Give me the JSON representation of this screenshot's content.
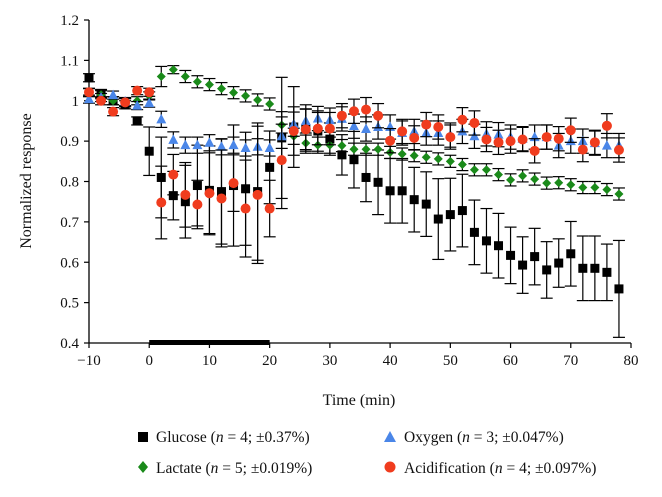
{
  "chart_data": {
    "type": "scatter",
    "xlabel": "Time (min)",
    "ylabel": "Normalized response",
    "xlim": [
      -10,
      80
    ],
    "ylim": [
      0.4,
      1.2
    ],
    "xticks": [
      -10,
      0,
      10,
      20,
      30,
      40,
      50,
      60,
      70,
      80
    ],
    "xtick_labels": [
      "−10",
      "0",
      "10",
      "20",
      "30",
      "40",
      "50",
      "60",
      "70",
      "80"
    ],
    "yticks": [
      0.4,
      0.5,
      0.6,
      0.7,
      0.8,
      0.9,
      1.0,
      1.1,
      1.2
    ],
    "ytick_labels": [
      "0.4",
      "0.5",
      "0.6",
      "0.7",
      "0.8",
      "0.9",
      "1",
      "1.1",
      "1.2"
    ],
    "grid": false,
    "legend_position": "bottom",
    "stimulus_bar": [
      0,
      20
    ],
    "x": [
      -10,
      -8,
      -6,
      -4,
      -2,
      0,
      2,
      4,
      6,
      8,
      10,
      12,
      14,
      16,
      18,
      20,
      22,
      24,
      26,
      28,
      30,
      32,
      34,
      36,
      38,
      40,
      42,
      44,
      46,
      48,
      50,
      52,
      54,
      56,
      58,
      60,
      62,
      64,
      66,
      68,
      70,
      72,
      74,
      76,
      78
    ],
    "series": [
      {
        "name": "Glucose",
        "n": "4",
        "precision": "±0.37%",
        "marker": "square",
        "color": "#000000",
        "values": [
          1.057,
          1.018,
          1.0,
          0.99,
          0.95,
          0.875,
          0.81,
          0.765,
          0.75,
          0.79,
          0.778,
          0.775,
          0.79,
          0.782,
          0.775,
          0.835,
          0.908,
          0.935,
          0.93,
          0.925,
          0.905,
          0.866,
          0.854,
          0.81,
          0.798,
          0.777,
          0.777,
          0.755,
          0.744,
          0.707,
          0.718,
          0.728,
          0.674,
          0.653,
          0.641,
          0.617,
          0.593,
          0.614,
          0.581,
          0.598,
          0.621,
          0.585,
          0.585,
          0.575,
          0.534
        ],
        "errors": [
          0.01,
          0.01,
          0.01,
          0.01,
          0.01,
          0.06,
          0.1,
          0.06,
          0.09,
          0.1,
          0.11,
          0.13,
          0.15,
          0.14,
          0.17,
          0.09,
          0.15,
          0.1,
          0.06,
          0.05,
          0.04,
          0.05,
          0.07,
          0.06,
          0.08,
          0.08,
          0.08,
          0.08,
          0.08,
          0.1,
          0.09,
          0.09,
          0.08,
          0.08,
          0.08,
          0.07,
          0.07,
          0.07,
          0.07,
          0.06,
          0.08,
          0.08,
          0.08,
          0.07,
          0.12
        ]
      },
      {
        "name": "Lactate",
        "n": "5",
        "precision": "±0.019%",
        "marker": "diamond",
        "color": "#1a8a1a",
        "values": [
          1.02,
          1.015,
          1.0,
          0.995,
          1.0,
          1.012,
          1.06,
          1.077,
          1.06,
          1.047,
          1.04,
          1.03,
          1.02,
          1.012,
          1.002,
          0.992,
          0.94,
          0.912,
          0.895,
          0.89,
          0.89,
          0.889,
          0.88,
          0.88,
          0.88,
          0.872,
          0.868,
          0.864,
          0.86,
          0.856,
          0.85,
          0.842,
          0.829,
          0.829,
          0.817,
          0.804,
          0.814,
          0.806,
          0.796,
          0.797,
          0.792,
          0.785,
          0.785,
          0.78,
          0.769
        ],
        "errors": [
          0.01,
          0.01,
          0.01,
          0.01,
          0.01,
          0.01,
          0.025,
          0.01,
          0.015,
          0.015,
          0.015,
          0.015,
          0.015,
          0.015,
          0.015,
          0.015,
          0.02,
          0.02,
          0.02,
          0.02,
          0.02,
          0.015,
          0.015,
          0.015,
          0.015,
          0.015,
          0.015,
          0.015,
          0.015,
          0.015,
          0.015,
          0.015,
          0.015,
          0.015,
          0.015,
          0.015,
          0.015,
          0.015,
          0.015,
          0.015,
          0.015,
          0.015,
          0.015,
          0.015,
          0.015
        ]
      },
      {
        "name": "Oxygen",
        "n": "3",
        "precision": "±0.047%",
        "marker": "triangle",
        "color": "#4a86e8",
        "values": [
          1.004,
          1.008,
          1.014,
          0.998,
          0.988,
          0.994,
          0.954,
          0.903,
          0.89,
          0.89,
          0.896,
          0.886,
          0.89,
          0.883,
          0.886,
          0.883,
          0.912,
          0.942,
          0.95,
          0.956,
          0.952,
          0.955,
          0.937,
          0.93,
          0.935,
          0.935,
          0.92,
          0.924,
          0.92,
          0.92,
          0.915,
          0.924,
          0.912,
          0.918,
          0.916,
          0.91,
          0.906,
          0.91,
          0.91,
          0.889,
          0.9,
          0.9,
          0.895,
          0.889,
          0.889
        ],
        "errors": [
          0.01,
          0.01,
          0.01,
          0.01,
          0.01,
          0.01,
          0.02,
          0.02,
          0.02,
          0.02,
          0.02,
          0.02,
          0.02,
          0.02,
          0.02,
          0.02,
          0.03,
          0.03,
          0.03,
          0.03,
          0.03,
          0.03,
          0.03,
          0.03,
          0.03,
          0.03,
          0.03,
          0.03,
          0.03,
          0.03,
          0.03,
          0.03,
          0.03,
          0.03,
          0.03,
          0.03,
          0.03,
          0.03,
          0.03,
          0.03,
          0.03,
          0.03,
          0.03,
          0.03,
          0.03
        ]
      },
      {
        "name": "Acidification",
        "n": "4",
        "precision": "±0.097%",
        "marker": "circle",
        "color": "#f03c1e",
        "values": [
          1.021,
          1.0,
          0.973,
          0.996,
          1.025,
          1.021,
          0.748,
          0.817,
          0.767,
          0.743,
          0.771,
          0.758,
          0.796,
          0.733,
          0.767,
          0.733,
          0.853,
          0.925,
          0.929,
          0.931,
          0.931,
          0.963,
          0.974,
          0.978,
          0.963,
          0.901,
          0.924,
          0.908,
          0.941,
          0.935,
          0.91,
          0.953,
          0.945,
          0.904,
          0.897,
          0.9,
          0.904,
          0.876,
          0.91,
          0.906,
          0.927,
          0.879,
          0.897,
          0.938,
          0.878
        ],
        "errors": [
          0.01,
          0.01,
          0.01,
          0.01,
          0.01,
          0.01,
          0.09,
          0.05,
          0.08,
          0.06,
          0.1,
          0.12,
          0.07,
          0.12,
          0.17,
          0.07,
          0.12,
          0.06,
          0.05,
          0.04,
          0.04,
          0.03,
          0.03,
          0.03,
          0.03,
          0.03,
          0.03,
          0.03,
          0.03,
          0.03,
          0.03,
          0.03,
          0.03,
          0.03,
          0.03,
          0.03,
          0.03,
          0.03,
          0.03,
          0.03,
          0.03,
          0.03,
          0.03,
          0.03,
          0.03
        ]
      }
    ]
  },
  "legend": {
    "n_symbol": "n",
    "items": [
      {
        "prefix": "Glucose (",
        "eq": " = 4; ±0.37%)"
      },
      {
        "prefix": "Oxygen (",
        "eq": " = 3; ±0.047%)"
      },
      {
        "prefix": "Lactate (",
        "eq": " = 5; ±0.019%)"
      },
      {
        "prefix": "Acidification (",
        "eq": " = 4; ±0.097%)"
      }
    ]
  }
}
